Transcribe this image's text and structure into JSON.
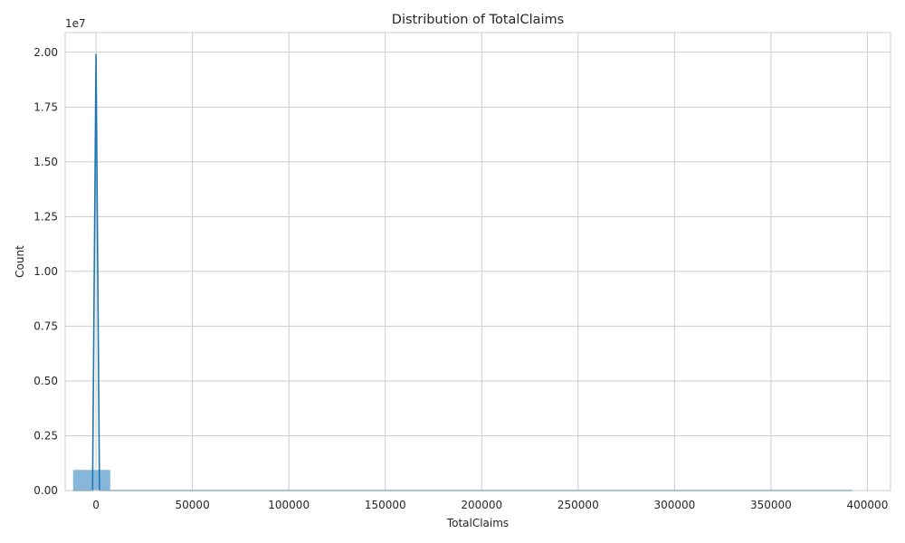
{
  "chart_data": {
    "type": "histogram",
    "title": "Distribution of TotalClaims",
    "xlabel": "TotalClaims",
    "ylabel": "Count",
    "y_offset_label": "1e7",
    "xlim": [
      -16000,
      412000
    ],
    "ylim": [
      0,
      20900000
    ],
    "x_ticks": [
      0,
      50000,
      100000,
      150000,
      200000,
      250000,
      300000,
      350000,
      400000
    ],
    "x_tick_labels": [
      "0",
      "50000",
      "100000",
      "150000",
      "200000",
      "250000",
      "300000",
      "350000",
      "400000"
    ],
    "y_ticks": [
      0,
      2500000,
      5000000,
      7500000,
      10000000,
      12500000,
      15000000,
      17500000,
      20000000
    ],
    "y_tick_labels": [
      "0.00",
      "0.25",
      "0.50",
      "0.75",
      "1.00",
      "1.25",
      "1.50",
      "1.75",
      "2.00"
    ],
    "grid": true,
    "bar_color": "#7fb2d8",
    "line_color": "#1f77b4",
    "bins": [
      {
        "x0": -12000,
        "x1": 7500,
        "count": 950000
      },
      {
        "x0": 7500,
        "x1": 392000,
        "count": 0
      }
    ],
    "kde": [
      {
        "x": -12000,
        "y": 0
      },
      {
        "x": -1800,
        "y": 0
      },
      {
        "x": 0,
        "y": 19900000
      },
      {
        "x": 1800,
        "y": 0
      },
      {
        "x": 392000,
        "y": 0
      }
    ]
  }
}
